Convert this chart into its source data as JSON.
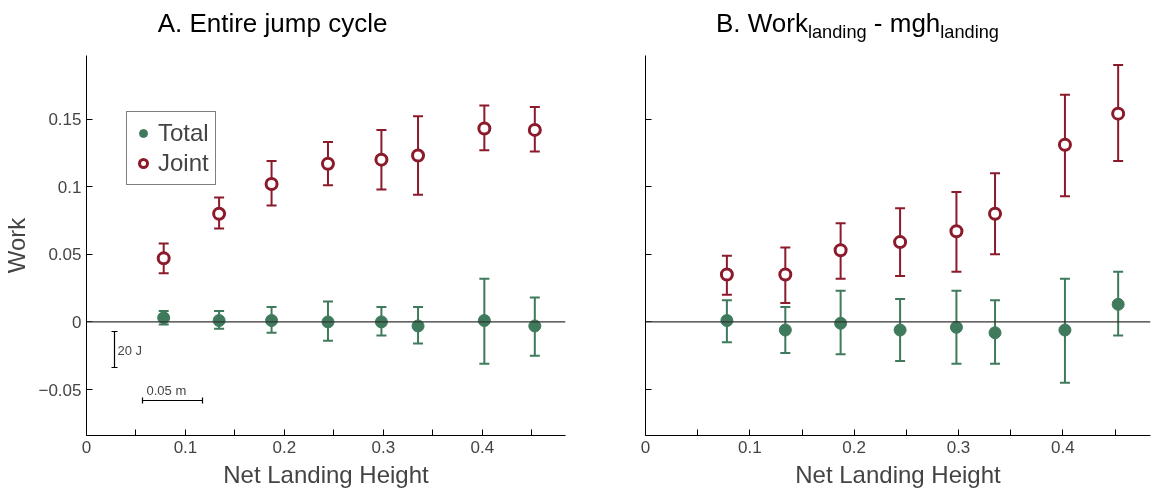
{
  "chart_data": [
    {
      "type": "scatter",
      "title": "A. Entire jump cycle",
      "xlabel": "Net Landing Height",
      "ylabel": "Work",
      "x": [
        0.078,
        0.134,
        0.187,
        0.244,
        0.298,
        0.335,
        0.402,
        0.453
      ],
      "series": [
        {
          "name": "Total",
          "color": "#3f7a5c",
          "values": [
            0.003,
            0.001,
            0.001,
            0.0,
            0.0,
            -0.003,
            0.001,
            -0.003
          ],
          "errors": [
            [
              -0.002,
              0.008
            ],
            [
              -0.005,
              0.008
            ],
            [
              -0.008,
              0.011
            ],
            [
              -0.014,
              0.015
            ],
            [
              -0.01,
              0.011
            ],
            [
              -0.016,
              0.011
            ],
            [
              -0.031,
              0.032
            ],
            [
              -0.025,
              0.018
            ]
          ]
        },
        {
          "name": "Joint",
          "color": "#8b1a2a",
          "values": [
            0.047,
            0.08,
            0.102,
            0.117,
            0.12,
            0.123,
            0.143,
            0.142
          ],
          "errors": [
            [
              0.036,
              0.058
            ],
            [
              0.069,
              0.092
            ],
            [
              0.086,
              0.119
            ],
            [
              0.101,
              0.133
            ],
            [
              0.098,
              0.142
            ],
            [
              0.094,
              0.152
            ],
            [
              0.127,
              0.16
            ],
            [
              0.126,
              0.159
            ]
          ]
        }
      ],
      "xlim": [
        0,
        0.484
      ],
      "ylim": [
        -0.084,
        0.197
      ],
      "xticks": [
        0,
        {
          "value": 0.05,
          "label": null
        },
        0.1,
        {
          "value": 0.15,
          "label": null
        },
        0.2,
        {
          "value": 0.25,
          "label": null
        },
        0.3,
        {
          "value": 0.35,
          "label": null
        },
        0.4,
        {
          "value": 0.45,
          "label": null
        }
      ],
      "yticks": [
        -0.05,
        0,
        0.05,
        0.1,
        0.15
      ],
      "ref_lines": [
        {
          "axis": "y",
          "value": 0,
          "color": "#333333"
        }
      ],
      "annotations": [
        "20 J",
        "0.05 m"
      ],
      "marker": "circle",
      "legend": "top left",
      "grid": false
    },
    {
      "type": "scatter",
      "title": "B. Work$_{landing}$ - mgh$_{landing}$",
      "xlabel": "Net Landing Height",
      "x": [
        0.078,
        0.134,
        0.187,
        0.244,
        0.298,
        0.335,
        0.402,
        0.453
      ],
      "series": [
        {
          "color": "#3f7a5c",
          "values": [
            0.001,
            -0.006,
            -0.001,
            -0.006,
            -0.004,
            -0.008,
            -0.006,
            0.013
          ],
          "errors": [
            [
              -0.015,
              0.016
            ],
            [
              -0.023,
              0.011
            ],
            [
              -0.024,
              0.023
            ],
            [
              -0.029,
              0.017
            ],
            [
              -0.031,
              0.023
            ],
            [
              -0.031,
              0.016
            ],
            [
              -0.045,
              0.032
            ],
            [
              -0.01,
              0.037
            ]
          ]
        },
        {
          "color": "#8b1a2a",
          "values": [
            0.035,
            0.035,
            0.053,
            0.059,
            0.067,
            0.08,
            0.131,
            0.154
          ],
          "errors": [
            [
              0.02,
              0.049
            ],
            [
              0.014,
              0.055
            ],
            [
              0.032,
              0.073
            ],
            [
              0.034,
              0.084
            ],
            [
              0.037,
              0.096
            ],
            [
              0.05,
              0.11
            ],
            [
              0.093,
              0.168
            ],
            [
              0.119,
              0.19
            ]
          ]
        }
      ],
      "xlim": [
        0,
        0.484
      ],
      "ylim": [
        -0.084,
        0.197
      ],
      "xticks": [
        0,
        {
          "value": 0.05,
          "label": null
        },
        0.1,
        {
          "value": 0.15,
          "label": null
        },
        0.2,
        {
          "value": 0.25,
          "label": null
        },
        0.3,
        {
          "value": 0.35,
          "label": null
        },
        0.4,
        {
          "value": 0.45,
          "label": null
        }
      ],
      "yticks": [
        -0.05,
        0,
        0.05,
        0.1,
        0.15
      ],
      "tick_labels": "x",
      "ref_lines": [
        {
          "axis": "y",
          "value": 0,
          "color": "#333333"
        }
      ],
      "marker": "circle",
      "legend": false,
      "grid": false
    }
  ]
}
